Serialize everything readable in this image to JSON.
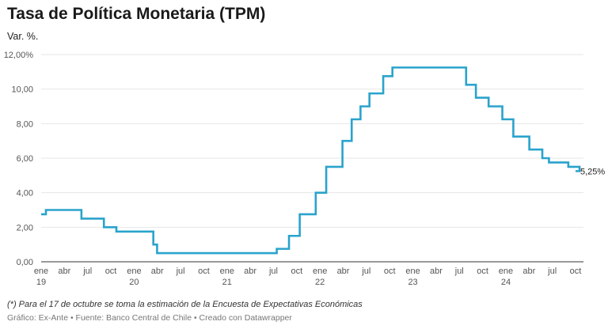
{
  "header": {
    "title": "Tasa de Política Monetaria (TPM)",
    "subtitle": "Var. %."
  },
  "footer": {
    "note": "(*) Para el 17 de octubre se toma la estimación de la Encuesta de Expectativas Económicas",
    "credits": "Gráfico: Ex-Ante • Fuente: Banco Central de Chile • Creado con Datawrapper"
  },
  "colors": {
    "line": "#2aa3cc",
    "grid": "#e6e6e6",
    "axis": "#333333",
    "tick_text": "#555555"
  },
  "chart_data": {
    "type": "line",
    "title": "Tasa de Política Monetaria (TPM)",
    "ylabel": "Var. %.",
    "ylim": [
      0,
      12
    ],
    "y_ticks": [
      0,
      2,
      4,
      6,
      8,
      10,
      12
    ],
    "y_tick_labels": [
      "0,00",
      "2,00",
      "4,00",
      "6,00",
      "8,00",
      "10,00",
      "12,00%"
    ],
    "x_range": [
      "2019-01",
      "2024-10"
    ],
    "x_ticks": [
      {
        "date": "2019-01",
        "label": "ene",
        "year": "19"
      },
      {
        "date": "2019-04",
        "label": "abr"
      },
      {
        "date": "2019-07",
        "label": "jul"
      },
      {
        "date": "2019-10",
        "label": "oct"
      },
      {
        "date": "2020-01",
        "label": "ene",
        "year": "20"
      },
      {
        "date": "2020-04",
        "label": "abr"
      },
      {
        "date": "2020-07",
        "label": "jul"
      },
      {
        "date": "2020-10",
        "label": "oct"
      },
      {
        "date": "2021-01",
        "label": "ene",
        "year": "21"
      },
      {
        "date": "2021-04",
        "label": "abr"
      },
      {
        "date": "2021-07",
        "label": "jul"
      },
      {
        "date": "2021-10",
        "label": "oct"
      },
      {
        "date": "2022-01",
        "label": "ene",
        "year": "22"
      },
      {
        "date": "2022-04",
        "label": "abr"
      },
      {
        "date": "2022-07",
        "label": "jul"
      },
      {
        "date": "2022-10",
        "label": "oct"
      },
      {
        "date": "2023-01",
        "label": "ene",
        "year": "23"
      },
      {
        "date": "2023-04",
        "label": "abr"
      },
      {
        "date": "2023-07",
        "label": "jul"
      },
      {
        "date": "2023-10",
        "label": "oct"
      },
      {
        "date": "2024-01",
        "label": "ene",
        "year": "24"
      },
      {
        "date": "2024-04",
        "label": "abr"
      },
      {
        "date": "2024-07",
        "label": "jul"
      },
      {
        "date": "2024-10",
        "label": "oct"
      }
    ],
    "step": true,
    "grid": true,
    "series": [
      {
        "points": [
          {
            "date": "2019-01",
            "value": 2.75
          },
          {
            "date": "2019-01-20",
            "value": 3.0
          },
          {
            "date": "2019-06-07",
            "value": 2.5
          },
          {
            "date": "2019-09-04",
            "value": 2.0
          },
          {
            "date": "2019-10-23",
            "value": 1.75
          },
          {
            "date": "2020-03-16",
            "value": 1.0
          },
          {
            "date": "2020-03-31",
            "value": 0.5
          },
          {
            "date": "2021-07-14",
            "value": 0.75
          },
          {
            "date": "2021-09-01",
            "value": 1.5
          },
          {
            "date": "2021-10-13",
            "value": 2.75
          },
          {
            "date": "2021-12-15",
            "value": 4.0
          },
          {
            "date": "2022-01-26",
            "value": 5.5
          },
          {
            "date": "2022-03-29",
            "value": 7.0
          },
          {
            "date": "2022-05-04",
            "value": 8.25
          },
          {
            "date": "2022-06-08",
            "value": 9.0
          },
          {
            "date": "2022-07-13",
            "value": 9.75
          },
          {
            "date": "2022-09-06",
            "value": 10.75
          },
          {
            "date": "2022-10-12",
            "value": 11.25
          },
          {
            "date": "2023-07-28",
            "value": 10.25
          },
          {
            "date": "2023-09-05",
            "value": 9.5
          },
          {
            "date": "2023-10-25",
            "value": 9.0
          },
          {
            "date": "2023-12-18",
            "value": 8.25
          },
          {
            "date": "2024-01-31",
            "value": 7.25
          },
          {
            "date": "2024-04-02",
            "value": 6.5
          },
          {
            "date": "2024-05-23",
            "value": 6.0
          },
          {
            "date": "2024-06-18",
            "value": 5.75
          },
          {
            "date": "2024-09-03",
            "value": 5.5
          },
          {
            "date": "2024-10-17",
            "value": 5.25
          }
        ]
      }
    ],
    "end_label": "5,25%"
  }
}
